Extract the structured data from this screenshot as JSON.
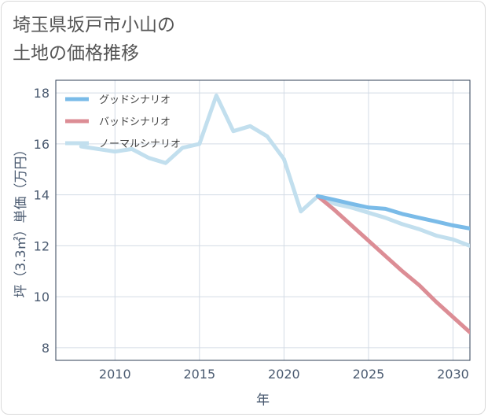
{
  "chart_data": {
    "type": "line",
    "title": "埼玉県坂戸市小山の\n土地の価格推移",
    "xlabel": "年",
    "ylabel": "坪（3.3㎡）単価（万円）",
    "xlim": [
      2006.5,
      2031
    ],
    "ylim": [
      7.5,
      18.5
    ],
    "x_ticks": [
      2010,
      2015,
      2020,
      2025,
      2030
    ],
    "y_ticks": [
      8,
      10,
      12,
      14,
      16,
      18
    ],
    "grid": true,
    "legend_position": "top-left",
    "series": [
      {
        "name": "グッドシナリオ",
        "color": "#7abbe8",
        "x": [
          2022,
          2023,
          2024,
          2025,
          2026,
          2027,
          2028,
          2029,
          2030,
          2031
        ],
        "y": [
          13.95,
          13.8,
          13.65,
          13.5,
          13.45,
          13.25,
          13.1,
          12.95,
          12.8,
          12.68
        ]
      },
      {
        "name": "バッドシナリオ",
        "color": "#dc8d95",
        "x": [
          2022,
          2023,
          2024,
          2025,
          2026,
          2027,
          2028,
          2029,
          2030,
          2031
        ],
        "y": [
          13.95,
          13.4,
          12.8,
          12.2,
          11.6,
          11.0,
          10.45,
          9.8,
          9.2,
          8.6
        ]
      },
      {
        "name": "ノーマルシナリオ",
        "color": "#c2dfee",
        "x": [
          2008,
          2009,
          2010,
          2011,
          2012,
          2013,
          2014,
          2015,
          2016,
          2017,
          2018,
          2019,
          2020,
          2021,
          2022,
          2023,
          2024,
          2025,
          2026,
          2027,
          2028,
          2029,
          2030,
          2031
        ],
        "y": [
          15.9,
          15.8,
          15.7,
          15.8,
          15.45,
          15.25,
          15.85,
          16.0,
          17.9,
          16.5,
          16.7,
          16.3,
          15.4,
          13.35,
          13.95,
          13.65,
          13.5,
          13.3,
          13.1,
          12.85,
          12.65,
          12.4,
          12.25,
          12.0
        ]
      }
    ]
  }
}
